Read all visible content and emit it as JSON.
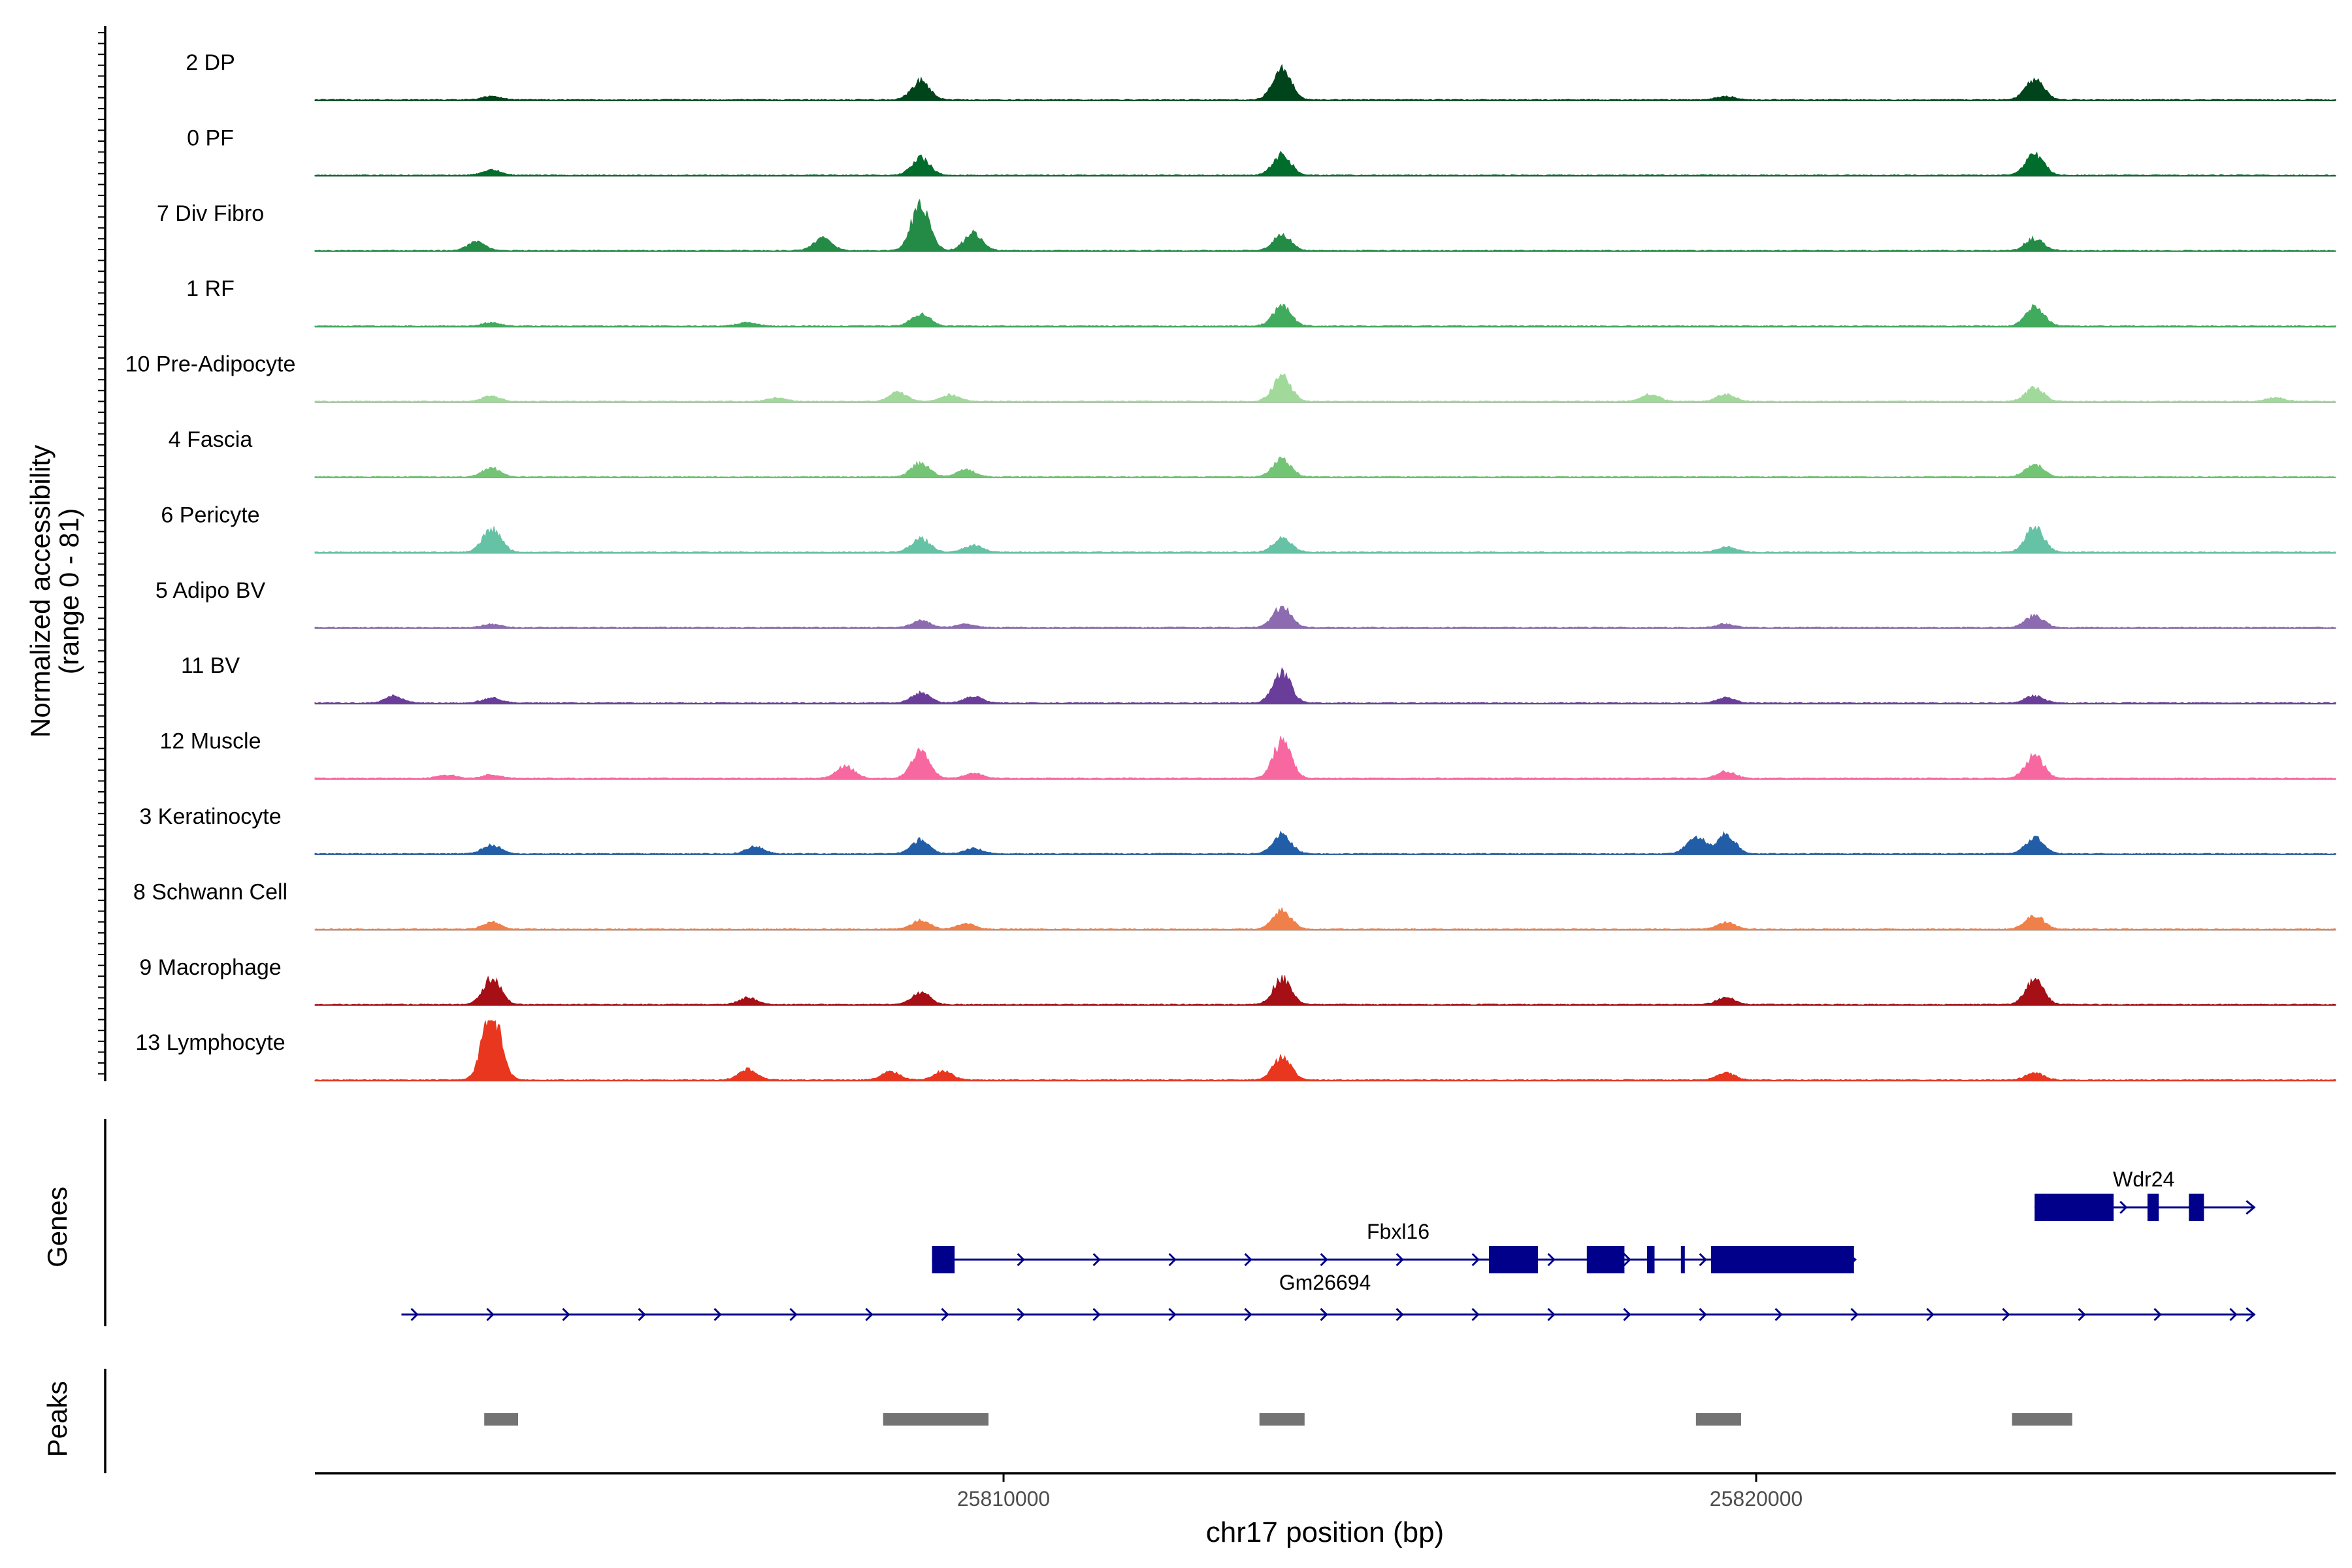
{
  "chart_data": {
    "type": "area",
    "title": "",
    "y_axis_label_line1": "Normalized accessibility",
    "y_axis_label_line2": "(range 0 - 81)",
    "y_range": [
      0,
      81
    ],
    "xlabel": "chr17 position (bp)",
    "x_range": [
      25800850,
      25827700
    ],
    "x_ticks": [
      {
        "value": 25810000,
        "label": "25810000"
      },
      {
        "value": 25820000,
        "label": "25820000"
      }
    ],
    "tracks": [
      {
        "name": "2 DP",
        "color": "#00441b",
        "peaks": [
          [
            25803200,
            2
          ],
          [
            25808900,
            11
          ],
          [
            25813700,
            18
          ],
          [
            25819600,
            2
          ],
          [
            25823700,
            12
          ]
        ]
      },
      {
        "name": "0 PF",
        "color": "#006d2c",
        "peaks": [
          [
            25803200,
            3
          ],
          [
            25808900,
            10
          ],
          [
            25813700,
            12
          ],
          [
            25823700,
            12
          ]
        ]
      },
      {
        "name": "7 Div Fibro",
        "color": "#238b45",
        "peaks": [
          [
            25803000,
            5
          ],
          [
            25807600,
            7
          ],
          [
            25808900,
            27
          ],
          [
            25809600,
            10
          ],
          [
            25813700,
            9
          ],
          [
            25823700,
            7
          ]
        ]
      },
      {
        "name": "1 RF",
        "color": "#41ab5d",
        "peaks": [
          [
            25803200,
            2
          ],
          [
            25806600,
            2
          ],
          [
            25808900,
            7
          ],
          [
            25813700,
            11
          ],
          [
            25823700,
            11
          ]
        ]
      },
      {
        "name": "10 Pre-Adipocyte",
        "color": "#a1d99b",
        "peaks": [
          [
            25803200,
            3
          ],
          [
            25807000,
            2
          ],
          [
            25808600,
            5
          ],
          [
            25809300,
            4
          ],
          [
            25813700,
            14
          ],
          [
            25818600,
            4
          ],
          [
            25819600,
            4
          ],
          [
            25823700,
            8
          ],
          [
            25826900,
            2
          ]
        ]
      },
      {
        "name": "4 Fascia",
        "color": "#74c476",
        "peaks": [
          [
            25803200,
            5
          ],
          [
            25808900,
            8
          ],
          [
            25809500,
            4
          ],
          [
            25813700,
            10
          ],
          [
            25823700,
            7
          ]
        ]
      },
      {
        "name": "6 Pericyte",
        "color": "#66c2a5",
        "peaks": [
          [
            25803200,
            14
          ],
          [
            25808900,
            8
          ],
          [
            25809600,
            4
          ],
          [
            25813700,
            8
          ],
          [
            25819600,
            3
          ],
          [
            25823700,
            14
          ]
        ]
      },
      {
        "name": "5 Adipo BV",
        "color": "#8c6bb1",
        "peaks": [
          [
            25803200,
            2
          ],
          [
            25808900,
            4
          ],
          [
            25809500,
            2
          ],
          [
            25813700,
            12
          ],
          [
            25819600,
            2
          ],
          [
            25823700,
            7
          ]
        ]
      },
      {
        "name": "11 BV",
        "color": "#6a3d9a",
        "peaks": [
          [
            25801900,
            4
          ],
          [
            25803200,
            3
          ],
          [
            25808900,
            6
          ],
          [
            25809600,
            4
          ],
          [
            25813700,
            17
          ],
          [
            25819600,
            3
          ],
          [
            25823700,
            4
          ]
        ]
      },
      {
        "name": "12 Muscle",
        "color": "#f768a1",
        "peaks": [
          [
            25802600,
            2
          ],
          [
            25803200,
            2
          ],
          [
            25807900,
            7
          ],
          [
            25808900,
            16
          ],
          [
            25809600,
            3
          ],
          [
            25813700,
            21
          ],
          [
            25819600,
            4
          ],
          [
            25823700,
            13
          ]
        ]
      },
      {
        "name": "3 Keratinocyte",
        "color": "#225ea8",
        "peaks": [
          [
            25803200,
            5
          ],
          [
            25806700,
            4
          ],
          [
            25808900,
            8
          ],
          [
            25809600,
            3
          ],
          [
            25813700,
            11
          ],
          [
            25819200,
            10
          ],
          [
            25819600,
            11
          ],
          [
            25823700,
            9
          ]
        ]
      },
      {
        "name": "8 Schwann Cell",
        "color": "#f0804a",
        "peaks": [
          [
            25803200,
            4
          ],
          [
            25808900,
            5
          ],
          [
            25809500,
            3
          ],
          [
            25813700,
            11
          ],
          [
            25819600,
            4
          ],
          [
            25823700,
            8
          ]
        ]
      },
      {
        "name": "9 Macrophage",
        "color": "#a50f15",
        "peaks": [
          [
            25803200,
            15
          ],
          [
            25806600,
            4
          ],
          [
            25808900,
            7
          ],
          [
            25813700,
            15
          ],
          [
            25819600,
            4
          ],
          [
            25823700,
            14
          ]
        ]
      },
      {
        "name": "13 Lymphocyte",
        "color": "#e9361e",
        "peaks": [
          [
            25803200,
            40
          ],
          [
            25806600,
            6
          ],
          [
            25808500,
            5
          ],
          [
            25809200,
            5
          ],
          [
            25813700,
            13
          ],
          [
            25819600,
            4
          ],
          [
            25823700,
            4
          ]
        ]
      }
    ],
    "genes_label": "Genes",
    "genes": [
      {
        "name": "Wdr24",
        "start": 25823700,
        "end": 25826600,
        "row": 0,
        "exons": [
          [
            25823700,
            25824750
          ],
          [
            25825200,
            25825350
          ],
          [
            25825750,
            25825950
          ]
        ]
      },
      {
        "name": "Fbxl16",
        "start": 25809050,
        "end": 25821300,
        "row": 1,
        "exons": [
          [
            25809050,
            25809350
          ],
          [
            25816450,
            25817100
          ],
          [
            25817750,
            25818250
          ],
          [
            25818550,
            25818650
          ],
          [
            25819000,
            25819050
          ],
          [
            25819400,
            25821300
          ]
        ]
      },
      {
        "name": "Gm26694",
        "start": 25802000,
        "end": 25826600,
        "row": 2,
        "exons": []
      }
    ],
    "peaks_label": "Peaks",
    "peak_regions": [
      [
        25803100,
        25803550
      ],
      [
        25808400,
        25809800
      ],
      [
        25813400,
        25814000
      ],
      [
        25819200,
        25819800
      ],
      [
        25823400,
        25824200
      ]
    ]
  }
}
